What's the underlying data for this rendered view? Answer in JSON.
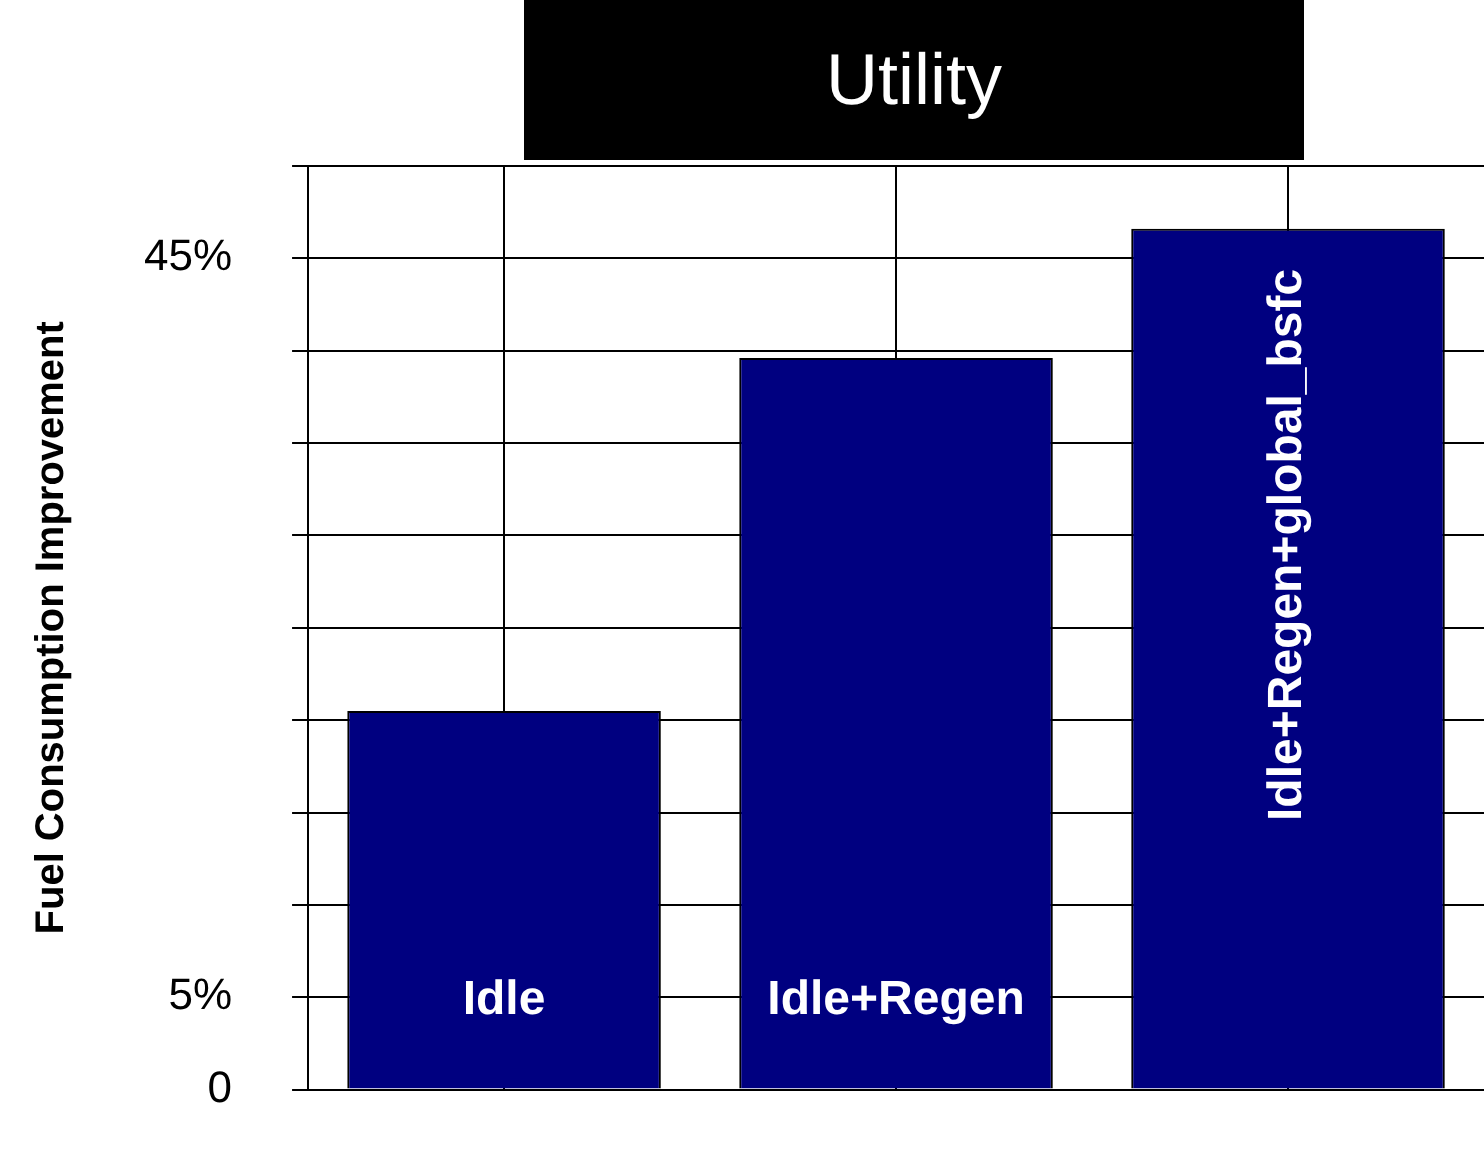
{
  "chart_data": {
    "type": "bar",
    "title": "Utility",
    "ylabel": "Fuel Consumption Improvement",
    "categories": [
      "Idle",
      "Idle+Regen",
      "Idle+Regen+global_bsfc"
    ],
    "values": [
      20.5,
      39.6,
      46.6
    ],
    "color": "#000080",
    "ylim": [
      0,
      50
    ],
    "yticks": [
      0,
      {
        "value": 5,
        "label": "5%"
      },
      {
        "value": 10,
        "label": null
      },
      {
        "value": 15,
        "label": null
      },
      {
        "value": 20,
        "label": null
      },
      {
        "value": 25,
        "label": null
      },
      {
        "value": 30,
        "label": null
      },
      {
        "value": 35,
        "label": null
      },
      {
        "value": 40,
        "label": null
      },
      {
        "value": 45,
        "label": "45%"
      },
      {
        "value": 50,
        "label": null
      }
    ],
    "grid": true,
    "tick_labels": "y"
  }
}
